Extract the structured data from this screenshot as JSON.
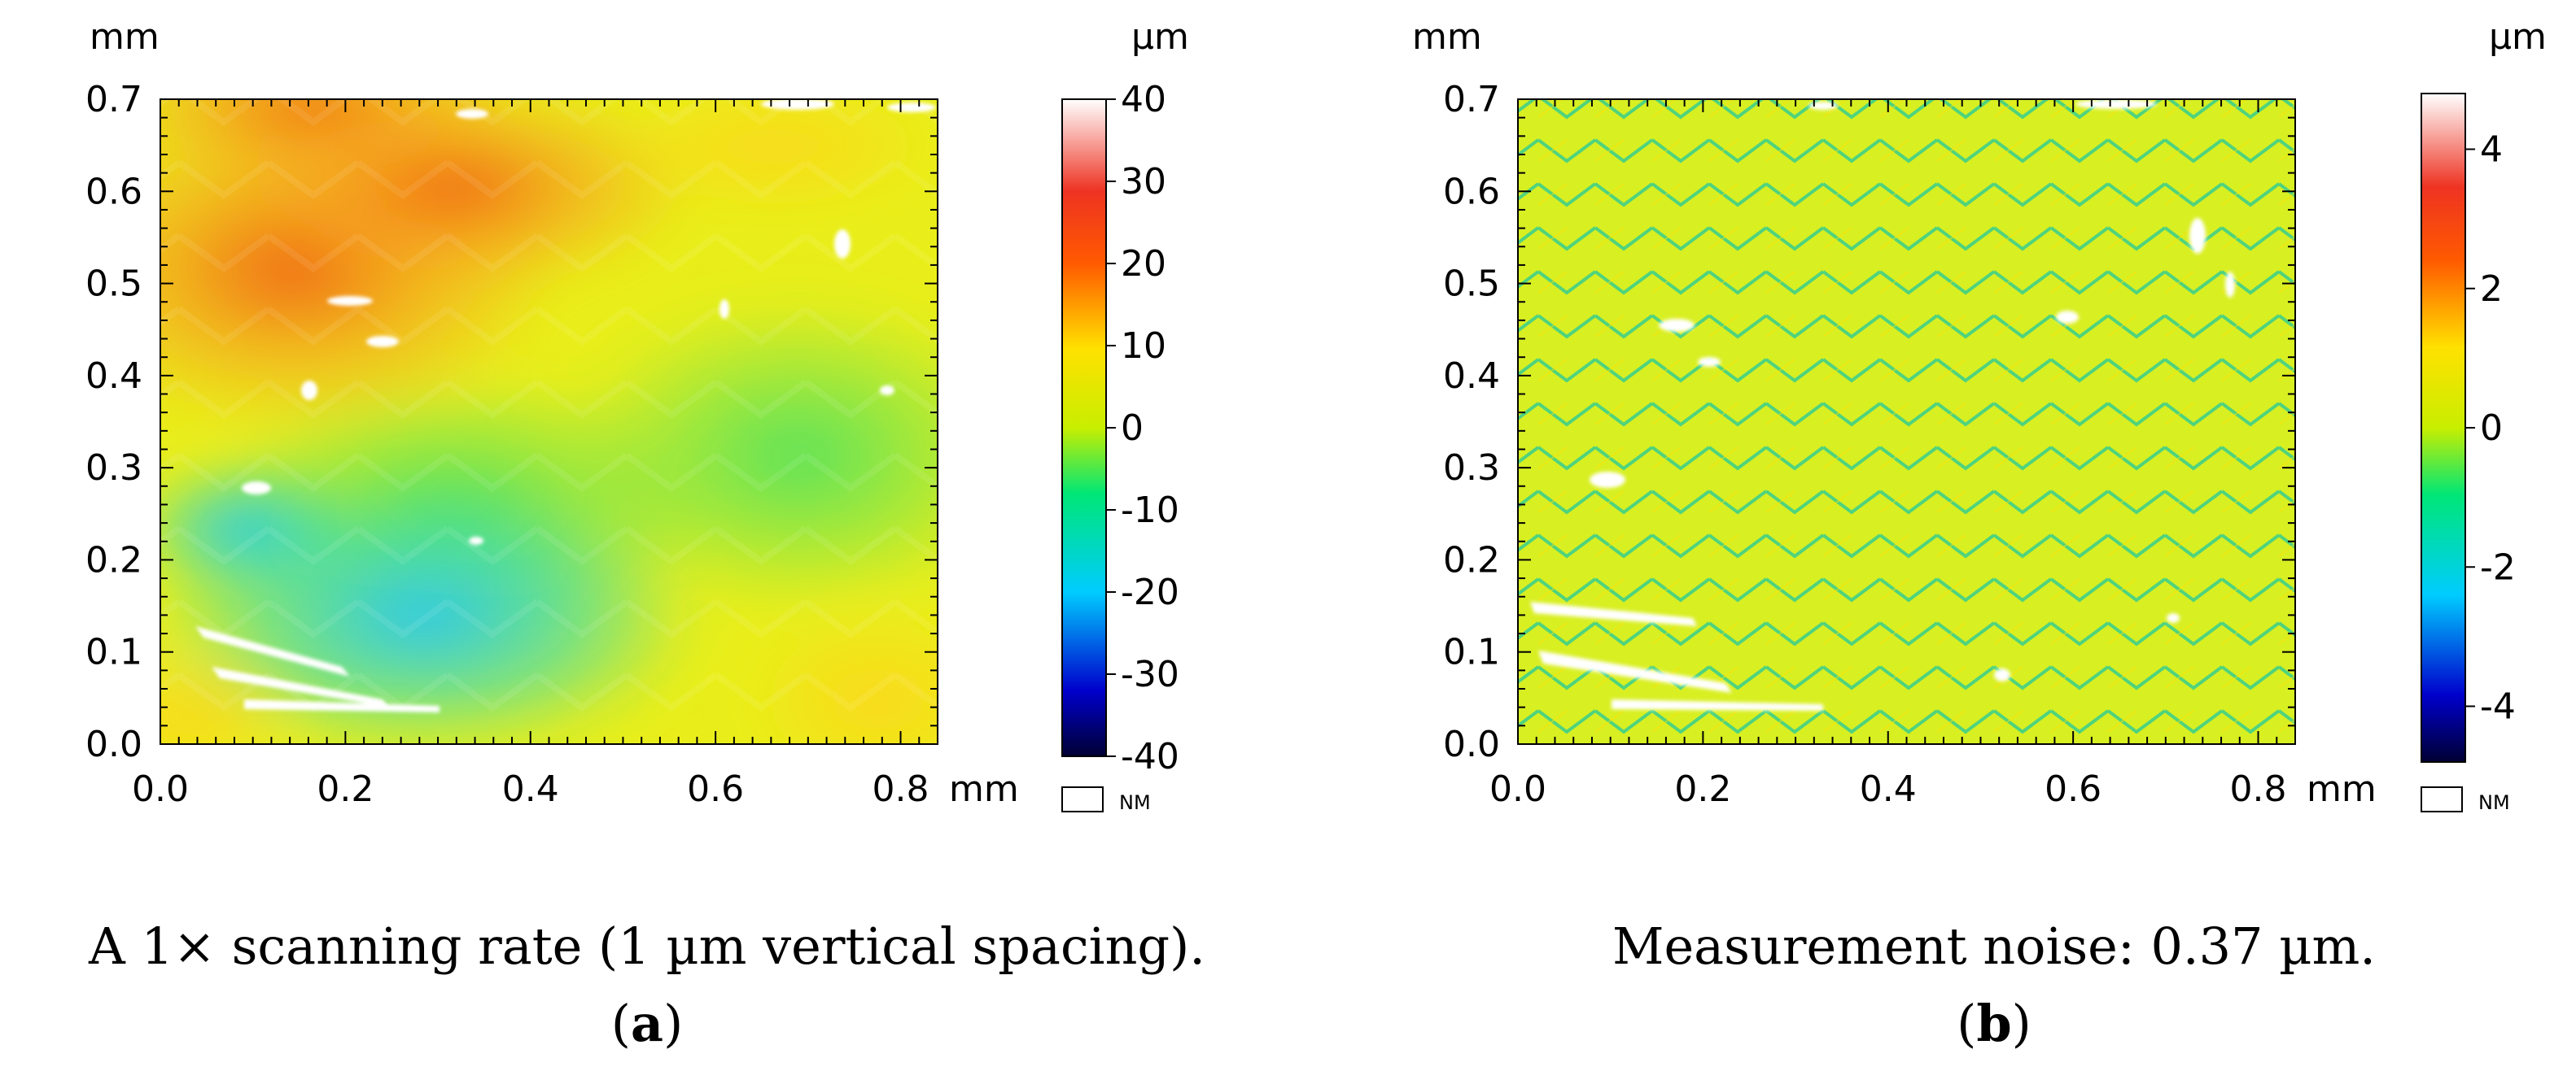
{
  "chart_data": [
    {
      "type": "heatmap",
      "panel_id": "a",
      "panel_label": "a",
      "caption": "A 1× scanning rate (1 µm vertical spacing).",
      "x_unit": "mm",
      "y_unit": "mm",
      "colorbar_unit": "µm",
      "xlim": [
        0.0,
        0.84
      ],
      "ylim": [
        0.0,
        0.7
      ],
      "x_ticks": [
        0.0,
        0.2,
        0.4,
        0.6,
        0.8
      ],
      "x_tick_labels": [
        "0.0",
        "0.2",
        "0.4",
        "0.6",
        "0.8"
      ],
      "y_ticks": [
        0.0,
        0.1,
        0.2,
        0.3,
        0.4,
        0.5,
        0.6,
        0.7
      ],
      "y_tick_labels": [
        "0.0",
        "0.1",
        "0.2",
        "0.3",
        "0.4",
        "0.5",
        "0.6",
        "0.7"
      ],
      "colorbar_range": [
        -40,
        40
      ],
      "colorbar_ticks": [
        40,
        30,
        20,
        10,
        0,
        -10,
        -20,
        -30,
        -40
      ],
      "colorbar_tick_labels": [
        "40",
        "30",
        "20",
        "10",
        "0",
        "-10",
        "-20",
        "-30",
        "-40"
      ],
      "nm_label": "NM",
      "surface_summary": {
        "high_region": "upper-left (~+20 µm)",
        "low_region": "lower-middle (~-20 µm)",
        "nominal": "0 µm"
      }
    },
    {
      "type": "heatmap",
      "panel_id": "b",
      "panel_label": "b",
      "caption": "Measurement noise: 0.37 µm.",
      "x_unit": "mm",
      "y_unit": "mm",
      "colorbar_unit": "µm",
      "xlim": [
        0.0,
        0.84
      ],
      "ylim": [
        0.0,
        0.7
      ],
      "x_ticks": [
        0.0,
        0.2,
        0.4,
        0.6,
        0.8
      ],
      "x_tick_labels": [
        "0.0",
        "0.2",
        "0.4",
        "0.6",
        "0.8"
      ],
      "y_ticks": [
        0.0,
        0.1,
        0.2,
        0.3,
        0.4,
        0.5,
        0.6,
        0.7
      ],
      "y_tick_labels": [
        "0.0",
        "0.1",
        "0.2",
        "0.3",
        "0.4",
        "0.5",
        "0.6",
        "0.7"
      ],
      "colorbar_range": [
        -4.8,
        4.8
      ],
      "colorbar_ticks": [
        4,
        2,
        0,
        -2,
        -4
      ],
      "colorbar_tick_labels": [
        "4",
        "2",
        "0",
        "-2",
        "-4"
      ],
      "nm_label": "NM",
      "noise_rms_um": 0.37
    }
  ],
  "colormap_stops": [
    {
      "t": 0.0,
      "color": "#000033"
    },
    {
      "t": 0.1,
      "color": "#0000cc"
    },
    {
      "t": 0.25,
      "color": "#00ccff"
    },
    {
      "t": 0.4,
      "color": "#00e676"
    },
    {
      "t": 0.5,
      "color": "#c8ee00"
    },
    {
      "t": 0.62,
      "color": "#ffe100"
    },
    {
      "t": 0.75,
      "color": "#ff5a00"
    },
    {
      "t": 0.86,
      "color": "#ee3322"
    },
    {
      "t": 1.0,
      "color": "#ffffff"
    }
  ]
}
